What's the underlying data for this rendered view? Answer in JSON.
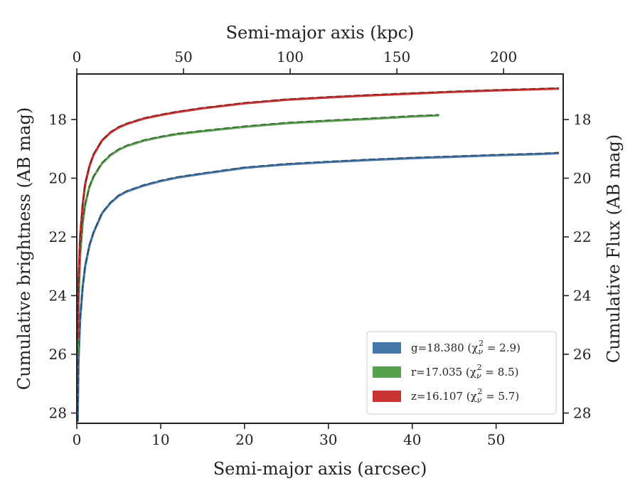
{
  "chart_data": {
    "type": "line",
    "xlabel_bottom": "Semi-major axis (arcsec)",
    "xlabel_top": "Semi-major axis (kpc)",
    "ylabel_left": "Cumulative brightness (AB mag)",
    "ylabel_right": "Cumulative Flux (AB mag)",
    "xlim": [
      0,
      58
    ],
    "ylim": [
      28.35,
      16.45
    ],
    "y_inverted": true,
    "x_ticks": [
      0,
      10,
      20,
      30,
      40,
      50
    ],
    "x_tick_labels": [
      "0",
      "10",
      "20",
      "30",
      "40",
      "50"
    ],
    "x_top_ticks": [
      0,
      50,
      100,
      150,
      200
    ],
    "x_top_tick_labels": [
      "0",
      "50",
      "100",
      "150",
      "200"
    ],
    "x_top_kpc_per_arcsec": 3.93,
    "y_ticks": [
      18,
      20,
      22,
      24,
      26,
      28
    ],
    "y_tick_labels": [
      "18",
      "20",
      "22",
      "24",
      "26",
      "28"
    ],
    "grid": false,
    "legend_position": "lower-right",
    "series": [
      {
        "name": "g",
        "label": "g=18.380",
        "chi_label": "(χ",
        "chi_sub": "ν",
        "chi_sup": "2",
        "chi_value": " = 2.9)",
        "color": "#4477a8",
        "x": [
          0.1,
          0.2,
          0.4,
          0.7,
          1,
          1.5,
          2,
          3,
          4,
          5,
          6,
          8,
          10,
          12,
          15,
          20,
          25,
          30,
          35,
          40,
          45,
          50,
          55,
          57.5
        ],
        "values": [
          28.3,
          26.2,
          24.8,
          23.7,
          23.0,
          22.3,
          21.85,
          21.2,
          20.85,
          20.6,
          20.45,
          20.25,
          20.1,
          19.98,
          19.85,
          19.65,
          19.53,
          19.45,
          19.38,
          19.32,
          19.27,
          19.22,
          19.18,
          19.15
        ]
      },
      {
        "name": "r",
        "label": "r=17.035",
        "chi_label": "(χ",
        "chi_sub": "ν",
        "chi_sup": "2",
        "chi_value": " = 8.5)",
        "color": "#56a04e",
        "x": [
          0.1,
          0.2,
          0.4,
          0.7,
          1,
          1.5,
          2,
          3,
          4,
          5,
          6,
          8,
          10,
          12,
          15,
          20,
          25,
          30,
          35,
          40,
          43.2
        ],
        "values": [
          26.0,
          24.2,
          22.6,
          21.5,
          20.9,
          20.3,
          19.95,
          19.5,
          19.22,
          19.03,
          18.9,
          18.72,
          18.6,
          18.5,
          18.4,
          18.25,
          18.13,
          18.05,
          17.98,
          17.9,
          17.86
        ]
      },
      {
        "name": "z",
        "label": "z=16.107",
        "chi_label": "(χ",
        "chi_sub": "ν",
        "chi_sup": "2",
        "chi_value": " = 5.7)",
        "color": "#cc3333",
        "x": [
          0.1,
          0.2,
          0.4,
          0.7,
          1,
          1.5,
          2,
          3,
          4,
          5,
          6,
          8,
          10,
          12,
          15,
          20,
          25,
          30,
          35,
          40,
          45,
          50,
          55,
          57.5
        ],
        "values": [
          25.5,
          23.6,
          22.0,
          20.9,
          20.2,
          19.6,
          19.2,
          18.72,
          18.45,
          18.27,
          18.15,
          17.97,
          17.85,
          17.75,
          17.62,
          17.45,
          17.33,
          17.25,
          17.18,
          17.12,
          17.06,
          17.01,
          16.97,
          16.95
        ]
      }
    ]
  }
}
